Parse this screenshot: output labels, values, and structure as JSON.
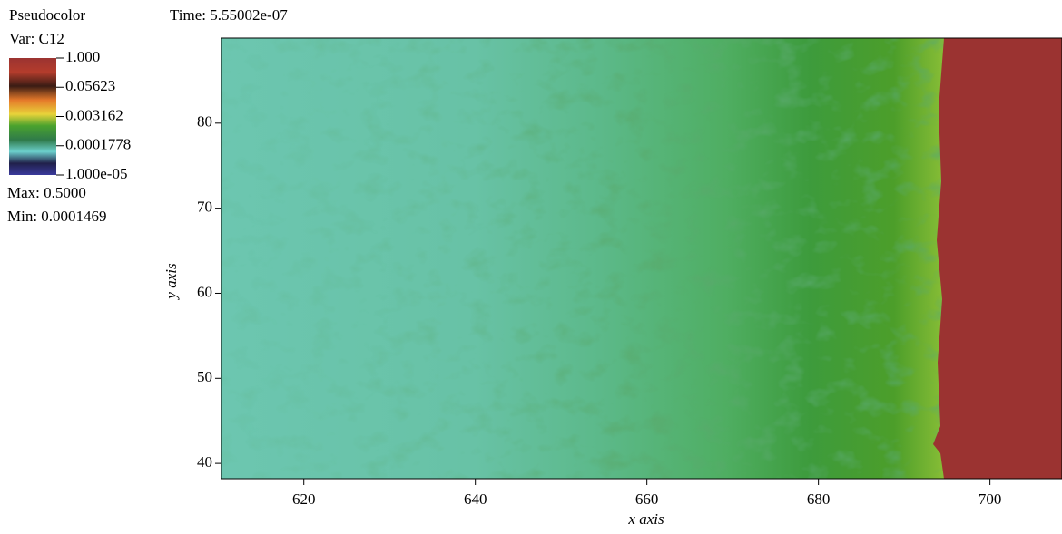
{
  "chart_data": {
    "type": "pseudocolor",
    "legend_title": "Pseudocolor",
    "variable": "Var: C12",
    "time": "Time: 5.55002e-07",
    "max_label": "Max: 0.5000",
    "min_label": "Min: 0.0001469",
    "colorbar_scale": "log",
    "colorbar_lim": [
      1e-05,
      1
    ],
    "colorbar_ticks": [
      {
        "value": 1,
        "label": "1.000"
      },
      0.05623,
      0.003162,
      0.0001778,
      {
        "value": 1e-05,
        "label": "1.000e-05"
      }
    ],
    "xlabel": "x axis",
    "ylabel": "y axis",
    "xlim": [
      610.4,
      708.4
    ],
    "ylim": [
      38.2,
      90
    ],
    "xticks": [
      620,
      640,
      660,
      680,
      700
    ],
    "yticks": [
      40,
      50,
      60,
      70,
      80
    ]
  }
}
